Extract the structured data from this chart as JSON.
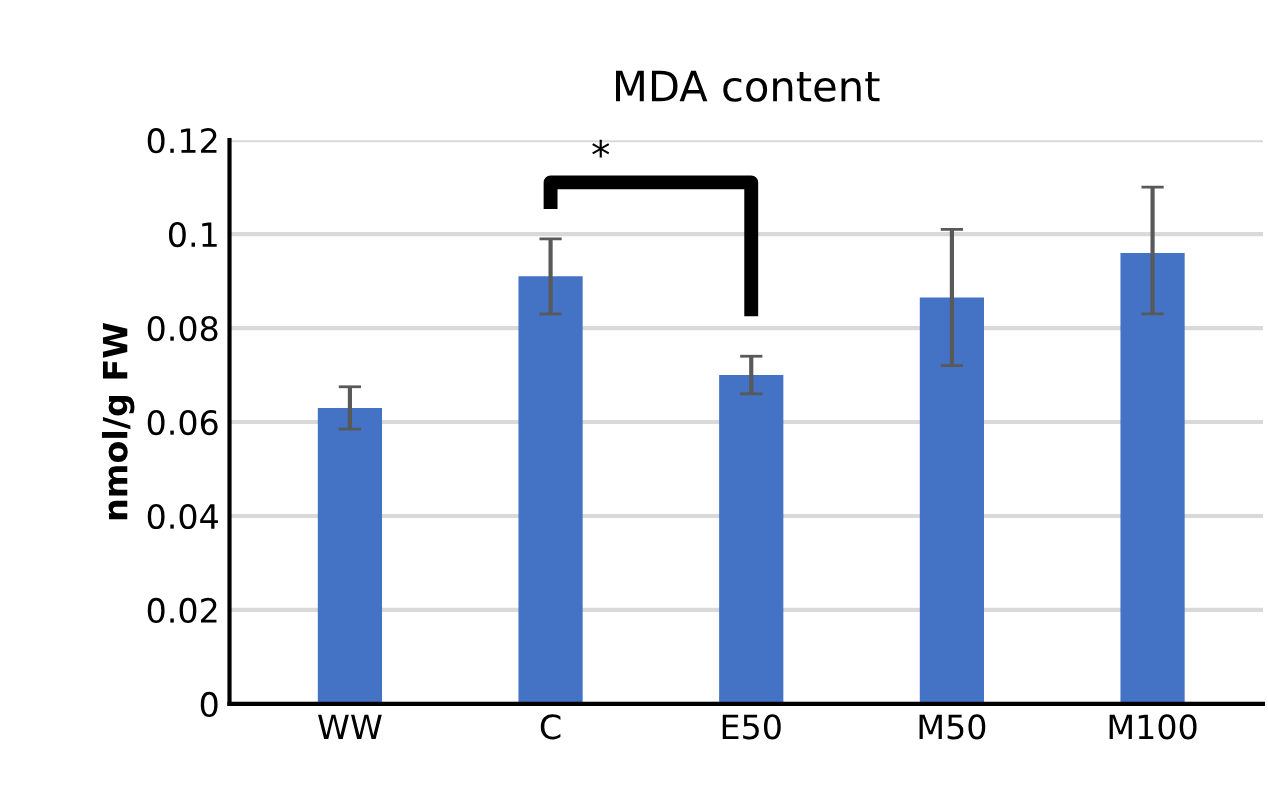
{
  "chart_data": {
    "type": "bar",
    "title": "MDA content",
    "ylabel": "nmol/g FW",
    "categories": [
      "WW",
      "C",
      "E50",
      "M50",
      "M100"
    ],
    "series": [
      {
        "color": "#4472c4",
        "values": [
          0.063,
          0.091,
          0.07,
          0.0865,
          0.096
        ],
        "errors": [
          [
            0.0585,
            0.0675
          ],
          [
            0.083,
            0.099
          ],
          [
            0.066,
            0.074
          ],
          [
            0.072,
            0.101
          ],
          [
            0.083,
            0.11
          ]
        ]
      }
    ],
    "ylim": [
      0,
      0.12
    ],
    "yticks": [
      0,
      0.02,
      0.04,
      0.06,
      0.08,
      0.1,
      0.12
    ],
    "grid": "y",
    "legend": false,
    "annotations": [
      "*"
    ]
  }
}
